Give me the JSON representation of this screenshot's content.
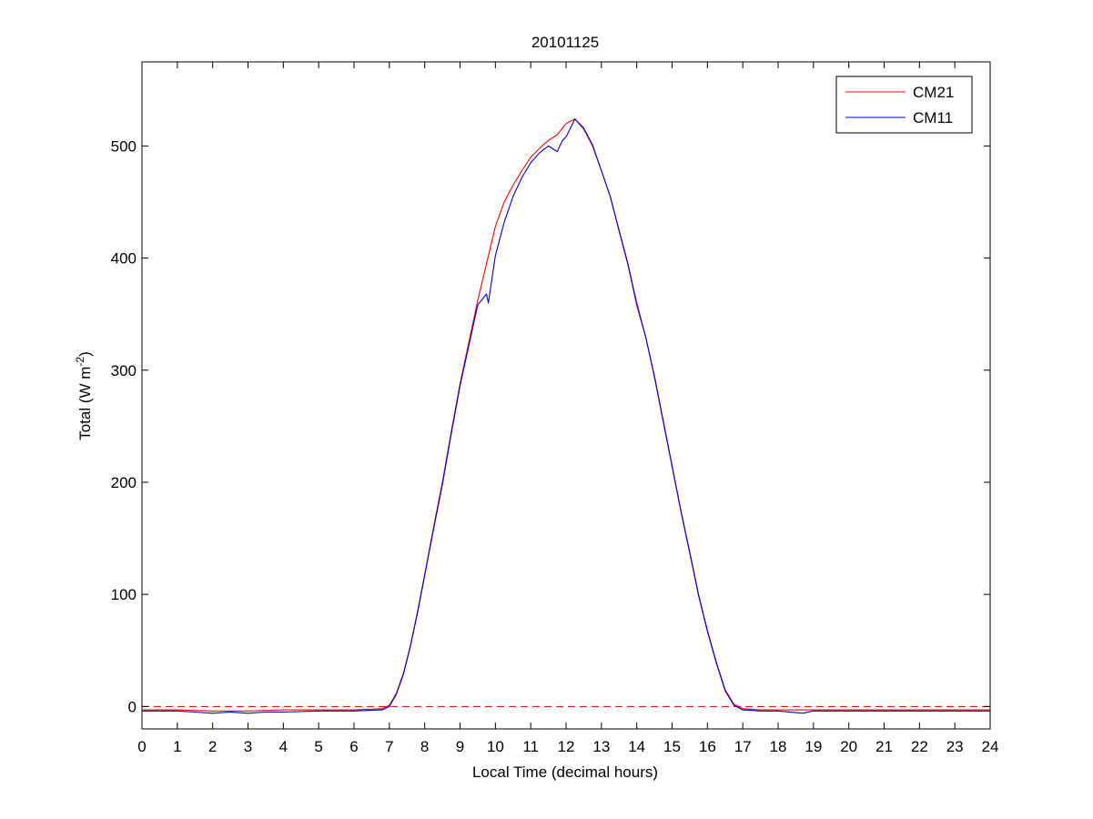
{
  "chart_data": {
    "type": "line",
    "title": "20101125",
    "xlabel": "Local Time (decimal hours)",
    "ylabel": {
      "prefix": "Total (W m",
      "superscript": "-2",
      "suffix": ")"
    },
    "xlim": [
      0,
      24
    ],
    "ylim": [
      -20,
      575
    ],
    "xticks": [
      0,
      1,
      2,
      3,
      4,
      5,
      6,
      7,
      8,
      9,
      10,
      11,
      12,
      13,
      14,
      15,
      16,
      17,
      18,
      19,
      20,
      21,
      22,
      23,
      24
    ],
    "yticks": [
      0,
      100,
      200,
      300,
      400,
      500
    ],
    "grid": false,
    "legend_position": "top-right",
    "reference_line": {
      "y": 0,
      "style": "dashed",
      "color": "#cc0000"
    },
    "series": [
      {
        "name": "CM21",
        "color": "#ff0000",
        "x": [
          0,
          1,
          2,
          3,
          4,
          5,
          6,
          6.8,
          7.0,
          7.2,
          7.4,
          7.6,
          7.8,
          8.0,
          8.25,
          8.5,
          8.75,
          9.0,
          9.25,
          9.5,
          9.75,
          10.0,
          10.25,
          10.5,
          10.75,
          11.0,
          11.25,
          11.5,
          11.75,
          12.0,
          12.25,
          12.5,
          12.75,
          13.0,
          13.25,
          13.5,
          13.75,
          14.0,
          14.25,
          14.5,
          14.75,
          15.0,
          15.25,
          15.5,
          15.75,
          16.0,
          16.25,
          16.5,
          16.75,
          17.0,
          17.5,
          18,
          19,
          20,
          21,
          22,
          23,
          24
        ],
        "y": [
          -3,
          -3,
          -4,
          -4,
          -3,
          -3,
          -3,
          -2,
          1,
          12,
          30,
          55,
          85,
          118,
          160,
          200,
          245,
          288,
          325,
          362,
          395,
          428,
          450,
          465,
          478,
          490,
          498,
          505,
          510,
          520,
          524,
          515,
          500,
          478,
          455,
          425,
          395,
          360,
          330,
          295,
          255,
          215,
          175,
          138,
          100,
          68,
          40,
          15,
          2,
          -2,
          -3,
          -3,
          -3,
          -3,
          -3,
          -3,
          -3,
          -3
        ]
      },
      {
        "name": "CM11",
        "color": "#0000cc",
        "x": [
          0,
          1,
          1.5,
          2,
          2.5,
          3,
          3.5,
          4,
          5,
          6,
          6.8,
          7.0,
          7.2,
          7.4,
          7.6,
          7.8,
          8.0,
          8.25,
          8.5,
          8.75,
          9.0,
          9.25,
          9.5,
          9.75,
          9.8,
          10.0,
          10.25,
          10.5,
          10.75,
          11.0,
          11.25,
          11.5,
          11.75,
          11.9,
          12.0,
          12.25,
          12.5,
          12.75,
          13.0,
          13.25,
          13.5,
          13.75,
          14.0,
          14.25,
          14.5,
          14.75,
          15.0,
          15.25,
          15.5,
          15.75,
          16.0,
          16.25,
          16.5,
          16.75,
          17.0,
          17.5,
          18,
          18.7,
          19,
          20,
          21,
          22,
          23,
          24
        ],
        "y": [
          -4,
          -4,
          -5,
          -6,
          -5,
          -6,
          -5,
          -5,
          -4,
          -4,
          -3,
          0,
          11,
          29,
          54,
          84,
          117,
          158,
          198,
          243,
          286,
          322,
          358,
          368,
          360,
          402,
          432,
          455,
          472,
          485,
          494,
          500,
          495,
          505,
          508,
          524,
          516,
          501,
          478,
          455,
          424,
          394,
          358,
          330,
          294,
          254,
          214,
          174,
          137,
          99,
          67,
          39,
          14,
          1,
          -3,
          -4,
          -4,
          -6,
          -4,
          -4,
          -4,
          -4,
          -4,
          -4
        ]
      }
    ]
  }
}
